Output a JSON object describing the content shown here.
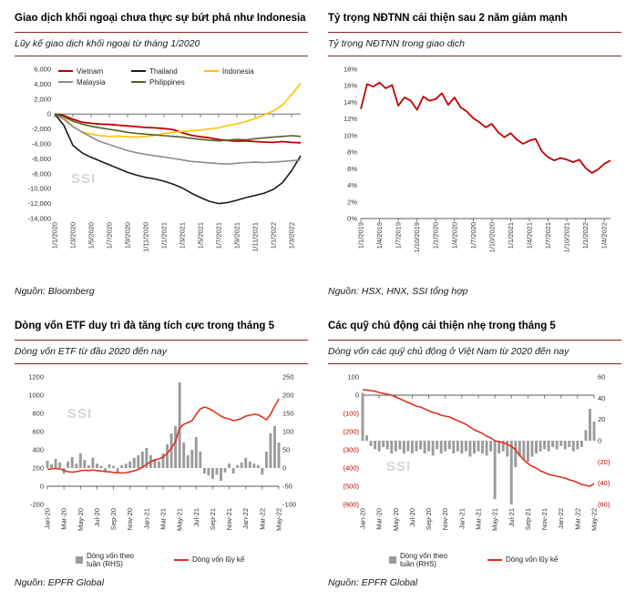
{
  "watermark": "SSI",
  "colors": {
    "rule_maroon": "#7E2B25",
    "red_line": "#C00000",
    "bright_red_line": "#E0301E",
    "bar_gray": "#9B9B9B",
    "negative_tick_red": "#C00000"
  },
  "panels": [
    {
      "title": "Giao dịch khối ngoại chưa thực sự bứt phá như Indonesia",
      "subtitle": "Lũy kế giao dịch khối ngoại từ tháng 1/2020",
      "source": "Nguồn: Bloomberg"
    },
    {
      "title": "Tỷ trọng NĐTNN cải thiện sau 2 năm giảm mạnh",
      "subtitle": "Tỷ trọng NĐTNN trong giao dịch",
      "source": "Nguồn: HSX, HNX, SSI tổng hợp"
    },
    {
      "title": "Dòng vốn ETF duy trì đà tăng tích cực trong tháng 5",
      "subtitle": "Dòng vốn ETF từ đầu 2020 đến nay",
      "source": "Nguồn: EPFR Global"
    },
    {
      "title": "Các quỹ chủ động cải thiện nhẹ trong tháng 5",
      "subtitle": "Dòng vốn các quỹ chủ động ở Việt Nam từ 2020 đến nay",
      "source": "Nguồn: EPFR Global"
    }
  ],
  "chart_data": [
    {
      "type": "line",
      "title": "Lũy kế giao dịch khối ngoại từ tháng 1/2020",
      "legend_position": "top-inside",
      "grid": false,
      "margins": {
        "l": 44,
        "r": 8,
        "t": 6,
        "b": 62
      },
      "y_left": {
        "lim": [
          -14000,
          6000
        ],
        "ticks": [
          {
            "v": 6000,
            "label": "6,000"
          },
          {
            "v": 4000,
            "label": "4,000"
          },
          {
            "v": 2000,
            "label": "2,000"
          },
          {
            "v": 0,
            "label": "0"
          },
          {
            "v": -2000,
            "label": "-2,000"
          },
          {
            "v": -4000,
            "label": "-4,000"
          },
          {
            "v": -6000,
            "label": "-6,000"
          },
          {
            "v": -8000,
            "label": "-8,000"
          },
          {
            "v": -10000,
            "label": "-10,000"
          },
          {
            "v": -12000,
            "label": "-12,000"
          },
          {
            "v": -14000,
            "label": "-14,000"
          }
        ]
      },
      "x_ticks": [
        {
          "i": 0,
          "label": "1/1/2020"
        },
        {
          "i": 2,
          "label": "1/3/2020"
        },
        {
          "i": 4,
          "label": "1/5/2020"
        },
        {
          "i": 6,
          "label": "1/7/2020"
        },
        {
          "i": 8,
          "label": "1/9/2020"
        },
        {
          "i": 10,
          "label": "1/11/2020"
        },
        {
          "i": 12,
          "label": "1/1/2021"
        },
        {
          "i": 14,
          "label": "1/3/2021"
        },
        {
          "i": 16,
          "label": "1/5/2021"
        },
        {
          "i": 18,
          "label": "1/7/2021"
        },
        {
          "i": 20,
          "label": "1/9/2021"
        },
        {
          "i": 22,
          "label": "1/11/2021"
        },
        {
          "i": 24,
          "label": "1/1/2022"
        },
        {
          "i": 26,
          "label": "1/3/2022"
        }
      ],
      "series": [
        {
          "name": "Vietnam",
          "type": "line",
          "axis": "left",
          "color": "#C00000",
          "width": 1.8,
          "values": [
            0,
            -200,
            -700,
            -1100,
            -1250,
            -1350,
            -1400,
            -1500,
            -1600,
            -1700,
            -1800,
            -1850,
            -1950,
            -2100,
            -2500,
            -2850,
            -3050,
            -3200,
            -3400,
            -3550,
            -3650,
            -3600,
            -3700,
            -3750,
            -3800,
            -3700,
            -3800,
            -3850
          ]
        },
        {
          "name": "Thailand",
          "type": "line",
          "axis": "left",
          "color": "#1A1A1A",
          "width": 1.6,
          "values": [
            0,
            -1500,
            -4200,
            -5200,
            -5800,
            -6300,
            -6800,
            -7300,
            -7800,
            -8200,
            -8500,
            -8700,
            -9000,
            -9400,
            -9900,
            -10600,
            -11200,
            -11700,
            -12000,
            -11850,
            -11550,
            -11200,
            -10900,
            -10600,
            -10100,
            -9200,
            -7600,
            -5600
          ]
        },
        {
          "name": "Indonesia",
          "type": "line",
          "axis": "left",
          "color": "#FFC000",
          "width": 1.6,
          "values": [
            0,
            -400,
            -1700,
            -2400,
            -2700,
            -2900,
            -3000,
            -2950,
            -3050,
            -3100,
            -3000,
            -2850,
            -2600,
            -2450,
            -2350,
            -2250,
            -2150,
            -2000,
            -1850,
            -1550,
            -1300,
            -1000,
            -600,
            -100,
            400,
            1200,
            2600,
            4100
          ]
        },
        {
          "name": "Malaysia",
          "type": "line",
          "axis": "left",
          "color": "#8C8C8C",
          "width": 1.6,
          "values": [
            0,
            -700,
            -1700,
            -2400,
            -3100,
            -3700,
            -4100,
            -4500,
            -4900,
            -5200,
            -5400,
            -5600,
            -5750,
            -5950,
            -6150,
            -6350,
            -6450,
            -6550,
            -6650,
            -6700,
            -6600,
            -6500,
            -6450,
            -6500,
            -6450,
            -6350,
            -6250,
            -6150
          ]
        },
        {
          "name": "Philippines",
          "type": "line",
          "axis": "left",
          "color": "#4F6228",
          "width": 1.6,
          "values": [
            0,
            -350,
            -950,
            -1350,
            -1650,
            -1850,
            -2050,
            -2250,
            -2450,
            -2600,
            -2700,
            -2800,
            -2900,
            -3000,
            -3100,
            -3250,
            -3400,
            -3500,
            -3600,
            -3500,
            -3400,
            -3450,
            -3300,
            -3200,
            -3100,
            -3000,
            -2900,
            -3000
          ]
        }
      ]
    },
    {
      "type": "line",
      "title": "Tỷ trọng NĐTNN trong giao dịch",
      "grid": false,
      "margins": {
        "l": 36,
        "r": 12,
        "t": 6,
        "b": 62
      },
      "y_left": {
        "lim": [
          0,
          18
        ],
        "ticks": [
          {
            "v": 18,
            "label": "18%"
          },
          {
            "v": 16,
            "label": "16%"
          },
          {
            "v": 14,
            "label": "14%"
          },
          {
            "v": 12,
            "label": "12%"
          },
          {
            "v": 10,
            "label": "10%"
          },
          {
            "v": 8,
            "label": "8%"
          },
          {
            "v": 6,
            "label": "6%"
          },
          {
            "v": 4,
            "label": "4%"
          },
          {
            "v": 2,
            "label": "2%"
          },
          {
            "v": 0,
            "label": "0%"
          }
        ]
      },
      "x_ticks": [
        {
          "i": 0,
          "label": "1/1/2019"
        },
        {
          "i": 3,
          "label": "1/4/2019"
        },
        {
          "i": 6,
          "label": "1/7/2019"
        },
        {
          "i": 9,
          "label": "1/10/2019"
        },
        {
          "i": 12,
          "label": "1/1/2020"
        },
        {
          "i": 15,
          "label": "1/4/2020"
        },
        {
          "i": 18,
          "label": "1/7/2020"
        },
        {
          "i": 21,
          "label": "1/10/2020"
        },
        {
          "i": 24,
          "label": "1/1/2021"
        },
        {
          "i": 27,
          "label": "1/4/2021"
        },
        {
          "i": 30,
          "label": "1/7/2021"
        },
        {
          "i": 33,
          "label": "1/10/2021"
        },
        {
          "i": 36,
          "label": "1/1/2022"
        },
        {
          "i": 39,
          "label": "1/4/2022"
        }
      ],
      "series": [
        {
          "name": "Tỷ trọng NĐTNN",
          "type": "line",
          "axis": "left",
          "color": "#C00000",
          "width": 1.8,
          "values": [
            13.2,
            16.2,
            15.9,
            16.4,
            15.7,
            16.1,
            13.6,
            14.6,
            14.2,
            13.1,
            14.7,
            14.2,
            14.4,
            15.1,
            13.7,
            14.6,
            13.4,
            12.9,
            12.1,
            11.6,
            11.0,
            11.4,
            10.4,
            9.8,
            10.3,
            9.5,
            9.0,
            9.4,
            9.6,
            8.1,
            7.4,
            7.0,
            7.3,
            7.1,
            6.8,
            7.1,
            6.1,
            5.5,
            5.9,
            6.6,
            7.0
          ]
        }
      ]
    },
    {
      "type": "combo",
      "title": "Dòng vốn ETF từ đầu 2020 đến nay",
      "grid": false,
      "margins": {
        "l": 36,
        "r": 32,
        "t": 6,
        "b": 50
      },
      "y_left": {
        "lim": [
          -200,
          1200
        ],
        "ticks": [
          {
            "v": 1200,
            "label": "1200"
          },
          {
            "v": 1000,
            "label": "1000"
          },
          {
            "v": 800,
            "label": "800"
          },
          {
            "v": 600,
            "label": "600"
          },
          {
            "v": 400,
            "label": "400"
          },
          {
            "v": 200,
            "label": "200"
          },
          {
            "v": 0,
            "label": "0"
          },
          {
            "v": -200,
            "label": "-200"
          }
        ]
      },
      "y_right": {
        "lim": [
          -100,
          250
        ],
        "ticks": [
          {
            "v": 250,
            "label": "250"
          },
          {
            "v": 200,
            "label": "200"
          },
          {
            "v": 150,
            "label": "150"
          },
          {
            "v": 100,
            "label": "100"
          },
          {
            "v": 50,
            "label": "50"
          },
          {
            "v": 0,
            "label": "0"
          },
          {
            "v": -50,
            "label": "-50"
          },
          {
            "v": -100,
            "label": "-100"
          }
        ]
      },
      "x_ticks": [
        {
          "i": 0,
          "label": "Jan-20"
        },
        {
          "i": 4,
          "label": "Mar-20"
        },
        {
          "i": 8,
          "label": "May-20"
        },
        {
          "i": 12,
          "label": "Jul-20"
        },
        {
          "i": 16,
          "label": "Sep-20"
        },
        {
          "i": 20,
          "label": "Nov-20"
        },
        {
          "i": 24,
          "label": "Jan-21"
        },
        {
          "i": 28,
          "label": "Mar-21"
        },
        {
          "i": 32,
          "label": "May-21"
        },
        {
          "i": 36,
          "label": "Jul-21"
        },
        {
          "i": 40,
          "label": "Sep-21"
        },
        {
          "i": 44,
          "label": "Nov-21"
        },
        {
          "i": 48,
          "label": "Jan-22"
        },
        {
          "i": 52,
          "label": "Mar-22"
        },
        {
          "i": 56,
          "label": "May-22"
        }
      ],
      "series": [
        {
          "name": "Dòng vốn theo tuần (RHS)",
          "type": "bar",
          "axis": "right",
          "color": "#9B9B9B",
          "values": [
            20,
            10,
            25,
            15,
            -15,
            18,
            30,
            12,
            40,
            22,
            8,
            28,
            12,
            6,
            -8,
            10,
            6,
            -12,
            8,
            12,
            18,
            28,
            35,
            45,
            55,
            35,
            25,
            18,
            40,
            65,
            95,
            115,
            235,
            70,
            35,
            50,
            85,
            45,
            -15,
            -20,
            -30,
            -18,
            -35,
            -12,
            12,
            -15,
            8,
            15,
            28,
            18,
            12,
            8,
            -18,
            45,
            95,
            115,
            70
          ]
        },
        {
          "name": "Dòng vốn lũy kế",
          "type": "line",
          "axis": "left",
          "color": "#E0301E",
          "width": 1.6,
          "values": [
            185,
            190,
            195,
            190,
            175,
            160,
            155,
            160,
            170,
            175,
            172,
            178,
            172,
            168,
            162,
            158,
            152,
            148,
            145,
            150,
            158,
            170,
            185,
            210,
            240,
            270,
            290,
            300,
            320,
            360,
            420,
            490,
            640,
            680,
            700,
            720,
            790,
            850,
            870,
            855,
            830,
            800,
            770,
            750,
            740,
            720,
            730,
            745,
            770,
            780,
            790,
            785,
            760,
            730,
            790,
            880,
            960
          ]
        }
      ]
    },
    {
      "type": "combo",
      "title": "Dòng vốn các quỹ chủ động ở Việt Nam từ 2020 đến nay",
      "grid": false,
      "margins": {
        "l": 38,
        "r": 30,
        "t": 6,
        "b": 50
      },
      "y_left": {
        "lim": [
          -600,
          100
        ],
        "ticks": [
          {
            "v": 100,
            "label": "100"
          },
          {
            "v": 0,
            "label": "0"
          },
          {
            "v": -100,
            "label": "(100)",
            "color": "#C00000"
          },
          {
            "v": -200,
            "label": "(200)",
            "color": "#C00000"
          },
          {
            "v": -300,
            "label": "(300)",
            "color": "#C00000"
          },
          {
            "v": -400,
            "label": "(400)",
            "color": "#C00000"
          },
          {
            "v": -500,
            "label": "(500)",
            "color": "#C00000"
          },
          {
            "v": -600,
            "label": "(600)",
            "color": "#C00000"
          }
        ]
      },
      "y_right": {
        "lim": [
          -60,
          60
        ],
        "ticks": [
          {
            "v": 60,
            "label": "60"
          },
          {
            "v": 40,
            "label": "40"
          },
          {
            "v": 20,
            "label": "20"
          },
          {
            "v": 0,
            "label": "0"
          },
          {
            "v": -20,
            "label": "(20)",
            "color": "#C00000"
          },
          {
            "v": -40,
            "label": "(40)",
            "color": "#C00000"
          },
          {
            "v": -60,
            "label": "(60)",
            "color": "#C00000"
          }
        ]
      },
      "x_ticks": [
        {
          "i": 0,
          "label": "Jan-20"
        },
        {
          "i": 4,
          "label": "Mar-20"
        },
        {
          "i": 8,
          "label": "May-20"
        },
        {
          "i": 12,
          "label": "Jul-20"
        },
        {
          "i": 16,
          "label": "Sep-20"
        },
        {
          "i": 20,
          "label": "Nov-20"
        },
        {
          "i": 24,
          "label": "Jan-21"
        },
        {
          "i": 28,
          "label": "Mar-21"
        },
        {
          "i": 32,
          "label": "May-21"
        },
        {
          "i": 36,
          "label": "Jul-21"
        },
        {
          "i": 40,
          "label": "Sep-21"
        },
        {
          "i": 44,
          "label": "Nov-21"
        },
        {
          "i": 48,
          "label": "Jan-22"
        },
        {
          "i": 52,
          "label": "Mar-22"
        },
        {
          "i": 56,
          "label": "May-22"
        }
      ],
      "series": [
        {
          "name": "Dòng vốn theo tuần (RHS)",
          "type": "bar",
          "axis": "right",
          "color": "#9B9B9B",
          "values": [
            45,
            5,
            -5,
            -8,
            -10,
            -6,
            -8,
            -12,
            -10,
            -8,
            -12,
            -10,
            -12,
            -10,
            -8,
            -12,
            -10,
            -14,
            -8,
            -12,
            -10,
            -8,
            -12,
            -10,
            -12,
            -10,
            -15,
            -12,
            -10,
            -12,
            -14,
            -10,
            -55,
            -12,
            -10,
            -15,
            -60,
            -25,
            -15,
            -18,
            -20,
            -15,
            -12,
            -10,
            -8,
            -10,
            -6,
            -8,
            -5,
            -8,
            -6,
            -10,
            -8,
            -6,
            10,
            30,
            18
          ]
        },
        {
          "name": "Dòng vốn lũy kế",
          "type": "line",
          "axis": "left",
          "color": "#E0301E",
          "width": 1.6,
          "values": [
            30,
            28,
            25,
            22,
            15,
            10,
            5,
            0,
            -10,
            -20,
            -30,
            -40,
            -50,
            -60,
            -65,
            -75,
            -85,
            -95,
            -100,
            -110,
            -115,
            -120,
            -130,
            -140,
            -150,
            -160,
            -175,
            -190,
            -200,
            -210,
            -225,
            -235,
            -250,
            -255,
            -260,
            -270,
            -280,
            -300,
            -330,
            -355,
            -375,
            -390,
            -400,
            -415,
            -425,
            -435,
            -440,
            -445,
            -450,
            -455,
            -465,
            -470,
            -480,
            -490,
            -495,
            -500,
            -485
          ]
        }
      ]
    }
  ]
}
